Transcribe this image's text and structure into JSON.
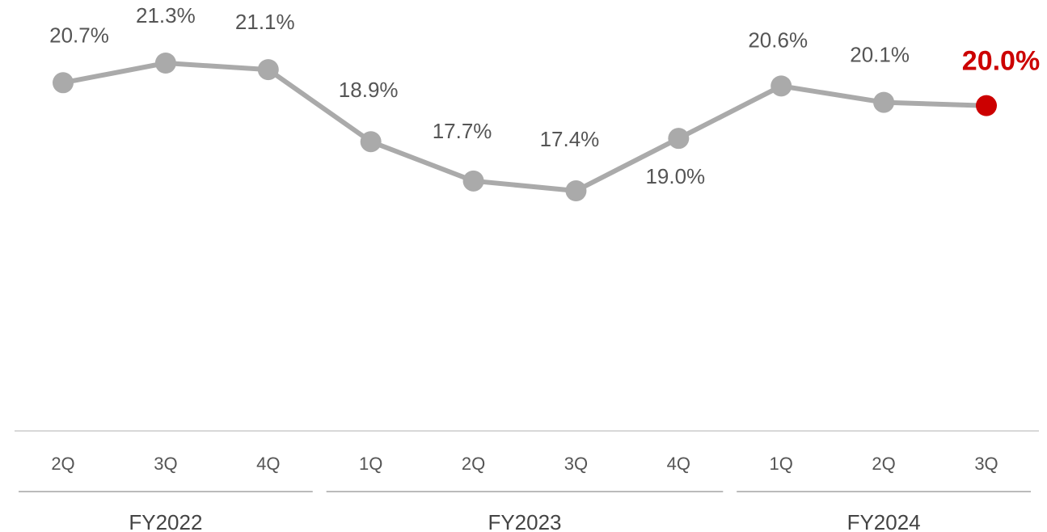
{
  "colors": {
    "line": "#aaaaaa",
    "point": "#aaaaaa",
    "highlight": "#cc0000",
    "axis": "#bbbbbb",
    "text": "#555555"
  },
  "chart_data": {
    "type": "line",
    "title": "",
    "xlabel": "",
    "ylabel": "",
    "categories": [
      "2Q",
      "3Q",
      "4Q",
      "1Q",
      "2Q",
      "3Q",
      "4Q",
      "1Q",
      "2Q",
      "3Q"
    ],
    "values": [
      20.7,
      21.3,
      21.1,
      18.9,
      17.7,
      17.4,
      19.0,
      20.6,
      20.1,
      20.0
    ],
    "data_labels": [
      "20.7%",
      "21.3%",
      "21.1%",
      "18.9%",
      "17.7%",
      "17.4%",
      "19.0%",
      "20.6%",
      "20.1%",
      "20.0%"
    ],
    "highlight_index": 9,
    "groups": [
      {
        "label": "FY2022",
        "start": 0,
        "end": 2
      },
      {
        "label": "FY2023",
        "start": 3,
        "end": 6
      },
      {
        "label": "FY2024",
        "start": 7,
        "end": 9
      }
    ],
    "grid": false,
    "legend": "none"
  }
}
